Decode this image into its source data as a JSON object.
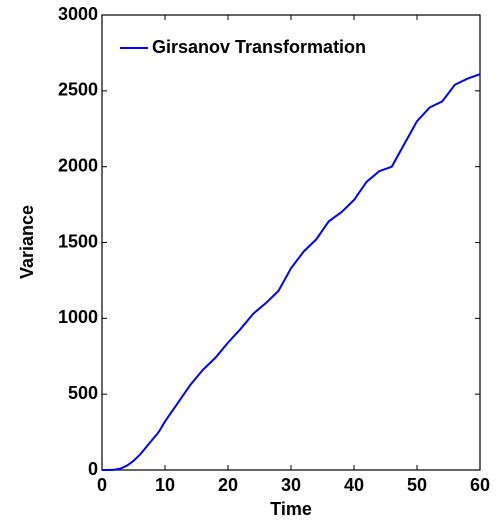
{
  "chart_data": {
    "type": "line",
    "xlabel": "Time",
    "ylabel": "Variance",
    "x": [
      0,
      1,
      2,
      3,
      4,
      5,
      6,
      7,
      8,
      9,
      10,
      12,
      14,
      16,
      18,
      20,
      22,
      24,
      26,
      28,
      30,
      32,
      34,
      36,
      38,
      40,
      42,
      44,
      46,
      48,
      50,
      52,
      54,
      56,
      58,
      60
    ],
    "series": [
      {
        "name": "Girsanov Transformation",
        "color": "#0000ff",
        "values": [
          0,
          0,
          2,
          10,
          30,
          60,
          100,
          150,
          200,
          250,
          320,
          440,
          560,
          660,
          740,
          840,
          930,
          1030,
          1100,
          1180,
          1330,
          1440,
          1520,
          1640,
          1700,
          1780,
          1900,
          1970,
          2000,
          2150,
          2300,
          2390,
          2430,
          2540,
          2580,
          2610
        ]
      }
    ],
    "xlim": [
      0,
      60
    ],
    "xticks": [
      0,
      10,
      20,
      30,
      40,
      50,
      60
    ],
    "ylim": [
      0,
      3000
    ],
    "yticks": [
      0,
      500,
      1000,
      1500,
      2000,
      2500,
      3000
    ],
    "legend": "upper left",
    "grid": false
  }
}
